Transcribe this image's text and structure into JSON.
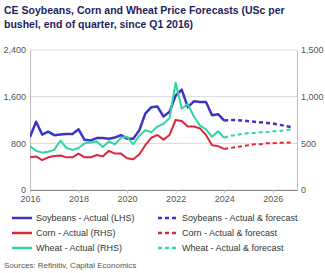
{
  "chart_data": {
    "type": "line",
    "title": "CE Soybeans, Corn and Wheat Price Forecasts (USc per bushel, end of quarter, since Q1 2016)",
    "source": "Sources: Refinitiv, Capital Economics",
    "x": [
      2016.0,
      2016.25,
      2016.5,
      2016.75,
      2017.0,
      2017.25,
      2017.5,
      2017.75,
      2018.0,
      2018.25,
      2018.5,
      2018.75,
      2019.0,
      2019.25,
      2019.5,
      2019.75,
      2020.0,
      2020.25,
      2020.5,
      2020.75,
      2021.0,
      2021.25,
      2021.5,
      2021.75,
      2022.0,
      2022.25,
      2022.5,
      2022.75,
      2023.0,
      2023.25,
      2023.5,
      2023.75,
      2024.0,
      2024.25,
      2024.5,
      2024.75,
      2025.0,
      2025.25,
      2025.5,
      2025.75,
      2026.0,
      2026.25,
      2026.5,
      2026.75
    ],
    "xlim": [
      2016,
      2027
    ],
    "xticks": [
      2016,
      2018,
      2020,
      2022,
      2024,
      2026
    ],
    "ylim": [
      0,
      2400
    ],
    "yticks": [
      0,
      800,
      {
        "value": 1600,
        "label": "1,600"
      },
      {
        "value": 2400,
        "label": "2,400"
      }
    ],
    "y2lim": [
      0,
      1500
    ],
    "y2ticks": [
      0,
      500,
      {
        "value": 1000,
        "label": "1,000"
      },
      {
        "value": 1500,
        "label": "1,500"
      }
    ],
    "grid": true,
    "series": [
      {
        "name": "Soybeans - Actual (LHS)",
        "color": "#3d33c4",
        "line_style": "solid",
        "axis": "y",
        "values": [
          910,
          1170,
          950,
          1000,
          940,
          950,
          960,
          960,
          1040,
          860,
          850,
          890,
          890,
          880,
          900,
          940,
          880,
          880,
          1020,
          1310,
          1420,
          1430,
          1260,
          1340,
          1620,
          1720,
          1420,
          1520,
          1510,
          1510,
          1280,
          1300,
          1190,
          null,
          null,
          null,
          null,
          null,
          null,
          null,
          null,
          null,
          null,
          null
        ]
      },
      {
        "name": "Soybeans - Actual & forecast",
        "color": "#3d33c4",
        "line_style": "dashed",
        "axis": "y",
        "values": [
          null,
          null,
          null,
          null,
          null,
          null,
          null,
          null,
          null,
          null,
          null,
          null,
          null,
          null,
          null,
          null,
          null,
          null,
          null,
          null,
          null,
          null,
          null,
          null,
          null,
          null,
          null,
          null,
          null,
          null,
          null,
          null,
          1190,
          1200,
          1200,
          1190,
          1180,
          1170,
          1160,
          1150,
          1140,
          1120,
          1100,
          1080
        ]
      },
      {
        "name": "Corn - Actual (RHS)",
        "color": "#d9293b",
        "line_style": "solid",
        "axis": "y2",
        "values": [
          350,
          360,
          320,
          350,
          365,
          370,
          350,
          350,
          390,
          350,
          350,
          375,
          360,
          420,
          390,
          390,
          340,
          330,
          380,
          480,
          560,
          590,
          540,
          590,
          750,
          740,
          680,
          680,
          660,
          590,
          480,
          470,
          440,
          null,
          null,
          null,
          null,
          null,
          null,
          null,
          null,
          null,
          null,
          null
        ]
      },
      {
        "name": "Corn - Actual & forecast",
        "color": "#d9293b",
        "line_style": "dashed",
        "axis": "y2",
        "values": [
          null,
          null,
          null,
          null,
          null,
          null,
          null,
          null,
          null,
          null,
          null,
          null,
          null,
          null,
          null,
          null,
          null,
          null,
          null,
          null,
          null,
          null,
          null,
          null,
          null,
          null,
          null,
          null,
          null,
          null,
          null,
          null,
          440,
          450,
          460,
          470,
          480,
          490,
          490,
          500,
          500,
          505,
          505,
          510
        ]
      },
      {
        "name": "Wheat - Actual (RHS)",
        "color": "#2fd6a1",
        "line_style": "solid",
        "axis": "y2",
        "values": [
          470,
          420,
          400,
          410,
          430,
          530,
          450,
          430,
          450,
          500,
          510,
          520,
          460,
          520,
          490,
          560,
          570,
          490,
          580,
          640,
          620,
          680,
          710,
          770,
          1150,
          870,
          920,
          790,
          690,
          650,
          570,
          630,
          560,
          null,
          null,
          null,
          null,
          null,
          null,
          null,
          null,
          null,
          null,
          null
        ]
      },
      {
        "name": "Wheat - Actual & forecast",
        "color": "#2fd6a1",
        "line_style": "dashed",
        "axis": "y2",
        "values": [
          null,
          null,
          null,
          null,
          null,
          null,
          null,
          null,
          null,
          null,
          null,
          null,
          null,
          null,
          null,
          null,
          null,
          null,
          null,
          null,
          null,
          null,
          null,
          null,
          null,
          null,
          null,
          null,
          null,
          null,
          null,
          null,
          560,
          580,
          590,
          600,
          610,
          610,
          620,
          620,
          630,
          630,
          640,
          650
        ]
      }
    ]
  }
}
